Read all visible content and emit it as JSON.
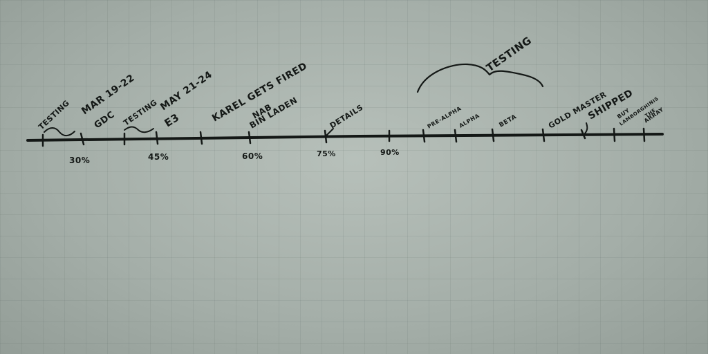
{
  "timeline": {
    "events": [
      {
        "text": "TESTING"
      },
      {
        "text": "MAR 19-22"
      },
      {
        "text": "GDC"
      },
      {
        "text": "TESTING"
      },
      {
        "text": "MAY 21-24"
      },
      {
        "text": "E3"
      },
      {
        "text": "KAREL GETS FIRED"
      },
      {
        "text": "NAB"
      },
      {
        "text": "BIN LADEN"
      },
      {
        "text": "DETAILS"
      },
      {
        "text": "PRE-ALPHA"
      },
      {
        "text": "ALPHA"
      },
      {
        "text": "BETA"
      },
      {
        "text": "GOLD MASTER"
      },
      {
        "text": "SHIPPED"
      },
      {
        "text": "BUY"
      },
      {
        "text": "LAMBORGHINIS"
      },
      {
        "text": "THE"
      },
      {
        "text": "ARRAY"
      }
    ],
    "percent_marks": [
      "30%",
      "45%",
      "60%",
      "75%",
      "90%"
    ],
    "bracket_label": "TESTING"
  }
}
